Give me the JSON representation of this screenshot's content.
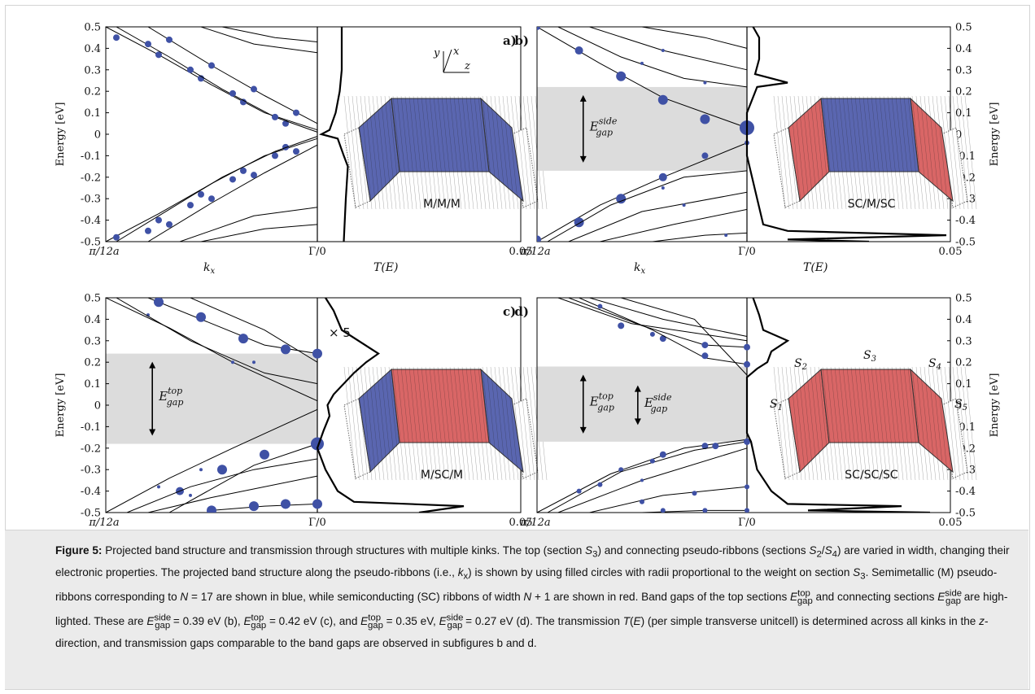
{
  "figure": {
    "panels": [
      {
        "id": "a",
        "panel_label": "a)",
        "structure_label": "M/M/M",
        "y_axis_side": "left",
        "y_axis_label": "Energy [eV]",
        "y_ticks": [
          "0.5",
          "0.4",
          "0.3",
          "0.2",
          "0.1",
          "0",
          "-0.1",
          "-0.2",
          "-0.3",
          "-0.4",
          "-0.5"
        ],
        "x_left_tick": "π/12a",
        "x_mid_tick": "Γ/0",
        "x_right_tick": "0.05",
        "band_axis_label": "k_x",
        "transmission_axis_label": "T(E)",
        "axes_icon": {
          "y": "y",
          "x": "x",
          "z": "z"
        },
        "ribbon_colors": {
          "side": "#5a66b0",
          "top": "#5a66b0"
        }
      },
      {
        "id": "b",
        "panel_label": "b)",
        "structure_label": "SC/M/SC",
        "y_axis_side": "right",
        "y_axis_label": "Energy [eV]",
        "y_ticks": [
          "0.5",
          "0.4",
          "0.3",
          "0.2",
          "0.1",
          "0",
          "-0.1",
          "-0.2",
          "-0.3",
          "-0.4",
          "-0.5"
        ],
        "x_left_tick": "π/12a",
        "x_mid_tick": "Γ/0",
        "x_right_tick": "0.05",
        "band_axis_label": "k_x",
        "transmission_axis_label": "T(E)",
        "gap_labels": [
          {
            "sup": "side",
            "range": [
              -0.17,
              0.22
            ],
            "arrow_x_frac": 0.22
          }
        ],
        "ribbon_colors": {
          "side": "#d96666",
          "top": "#5a66b0"
        }
      },
      {
        "id": "c",
        "panel_label": "c)",
        "structure_label": "M/SC/M",
        "y_axis_side": "left",
        "y_axis_label": "Energy [eV]",
        "y_ticks": [
          "0.5",
          "0.4",
          "0.3",
          "0.2",
          "0.1",
          "0",
          "-0.1",
          "-0.2",
          "-0.3",
          "-0.4",
          "-0.5"
        ],
        "x_left_tick": "π/12a",
        "x_mid_tick": "Γ/0",
        "x_right_tick": "0.05",
        "band_axis_label": "k_x",
        "transmission_axis_label": "T(E)",
        "multiplier": "× 5",
        "gap_labels": [
          {
            "sup": "top",
            "range": [
              -0.18,
              0.24
            ],
            "arrow_x_frac": 0.22
          }
        ],
        "ribbon_colors": {
          "side": "#5a66b0",
          "top": "#d96666"
        }
      },
      {
        "id": "d",
        "panel_label": "d)",
        "structure_label": "SC/SC/SC",
        "y_axis_side": "right",
        "y_axis_label": "Energy [eV]",
        "y_ticks": [
          "0.5",
          "0.4",
          "0.3",
          "0.2",
          "0.1",
          "0",
          "-0.1",
          "-0.2",
          "-0.3",
          "-0.4",
          "-0.5"
        ],
        "x_left_tick": "π/12a",
        "x_mid_tick": "Γ/0",
        "x_right_tick": "0.05",
        "band_axis_label": "k_x",
        "transmission_axis_label": "T(E)",
        "gap_labels": [
          {
            "sup": "top",
            "range": [
              -0.17,
              0.18
            ],
            "arrow_x_frac": 0.22
          },
          {
            "sup": "side",
            "range": [
              -0.13,
              0.13
            ],
            "arrow_x_frac": 0.48
          }
        ],
        "section_labels": [
          "S1",
          "S2",
          "S3",
          "S4",
          "S5"
        ],
        "ribbon_colors": {
          "side": "#d96666",
          "top": "#d96666"
        }
      }
    ],
    "gap_symbol": "E",
    "gap_sub": "gap",
    "colors": {
      "metal_blue": "#3f51a5",
      "semi_red": "#d96666",
      "gap_shade": "#dcdcdc",
      "line": "#000000"
    }
  },
  "caption": {
    "label": "Figure 5:",
    "text": "Projected band structure and transmission through structures with multiple kinks. The top (section S3) and connecting pseudo-ribbons (sections S2/S4) are varied in width, changing their electronic properties. The projected band structure along the pseudo-ribbons (i.e., kx) is shown by using filled circles with radii proportional to the weight on section S3. Semimetallic (M) pseudo-ribbons corresponding to N = 17 are shown in blue, while semiconducting (SC) ribbons of width N + 1 are shown in red. Band gaps of the top sections Egap^top and connecting sections Egap^side are highlighted. These are Egap^side = 0.39 eV (b), Egap^top = 0.42 eV (c), and Egap^top = 0.35 eV, Egap^side = 0.27 eV (d). The transmission T(E) (per simple transverse unitcell) is determined across all kinks in the z-direction, and transmission gaps comparable to the band gaps are observed in subfigures b and d."
  }
}
